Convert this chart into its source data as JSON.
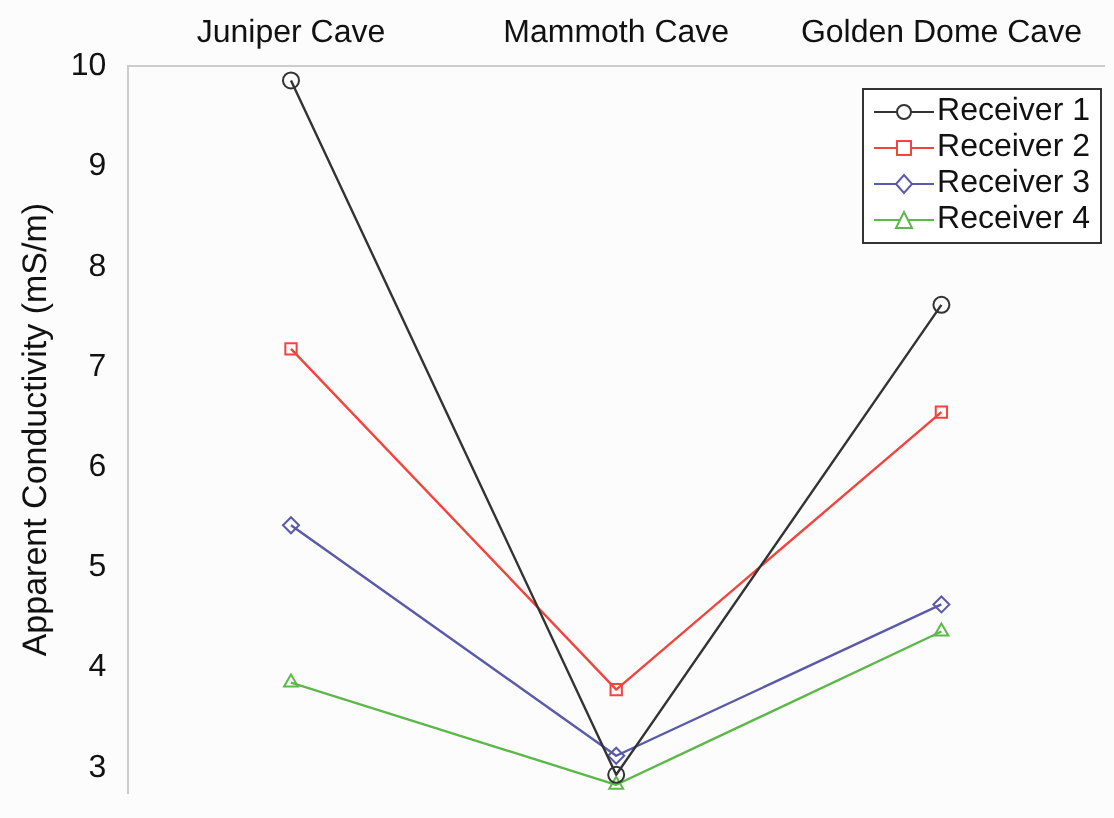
{
  "chart_data": {
    "type": "line",
    "ylabel": "Apparent Conductivity (mS/m)",
    "categories": [
      "Juniper Cave",
      "Mammoth Cave",
      "Golden Dome Cave"
    ],
    "series": [
      {
        "name": "Receiver 1",
        "color": "#333333",
        "marker": "circle",
        "values": [
          9.86,
          2.93,
          7.62
        ]
      },
      {
        "name": "Receiver 2",
        "color": "#f0443c",
        "marker": "square",
        "values": [
          7.18,
          3.78,
          6.55
        ]
      },
      {
        "name": "Receiver 3",
        "color": "#5a5aaa",
        "marker": "diamond",
        "values": [
          5.42,
          3.12,
          4.63
        ]
      },
      {
        "name": "Receiver 4",
        "color": "#5cb84a",
        "marker": "triangle",
        "values": [
          3.85,
          2.83,
          4.36
        ]
      }
    ],
    "ylim": [
      2.75,
      10
    ],
    "yticks": [
      3,
      4,
      5,
      6,
      7,
      8,
      9,
      10
    ],
    "grid": false,
    "legend": "top right",
    "line_style": "solid"
  }
}
